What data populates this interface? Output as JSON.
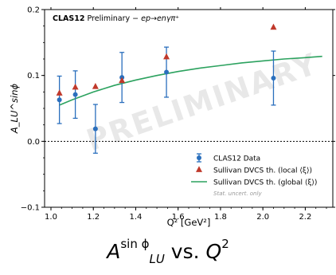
{
  "chart_data": {
    "type": "scatter",
    "title_bold": "CLAS12",
    "title_rest": " Preliminary − ",
    "title_reaction": "ep→enγπ⁺",
    "xlabel": "Q² [GeV²]",
    "ylabel": "A_LU^sinϕ",
    "xlim": [
      0.97,
      2.33
    ],
    "ylim": [
      -0.1,
      0.2
    ],
    "xticks": [
      1.0,
      1.2,
      1.4,
      1.6,
      1.8,
      2.0,
      2.2
    ],
    "xtick_labels": [
      "1.0",
      "1.2",
      "1.4",
      "1.6",
      "1.8",
      "2.0",
      "2.2"
    ],
    "yticks": [
      -0.1,
      0.0,
      0.1,
      0.2
    ],
    "ytick_labels": [
      "−0.1",
      "0.0",
      "0.1",
      "0.2"
    ],
    "zero_line": true,
    "watermark": "PRELIMINARY",
    "legend_position": "lower-right",
    "note": "Stat. uncert. only",
    "series": [
      {
        "name": "CLAS12 Data",
        "kind": "points_with_errors",
        "color": "#2a6fbd",
        "x": [
          1.04,
          1.115,
          1.21,
          1.335,
          1.545,
          2.05
        ],
        "y": [
          0.063,
          0.071,
          0.019,
          0.097,
          0.105,
          0.096
        ],
        "yerr": [
          0.036,
          0.036,
          0.037,
          0.038,
          0.038,
          0.041
        ]
      },
      {
        "name": "Sullivan DVCS th. (local ⟨ξ⟩)",
        "kind": "markers",
        "color": "#c0392b",
        "x": [
          1.04,
          1.115,
          1.21,
          1.335,
          1.545,
          2.05
        ],
        "y": [
          0.073,
          0.082,
          0.083,
          0.092,
          0.128,
          0.173
        ]
      },
      {
        "name": "Sullivan DVCS th. (global ⟨ξ⟩)",
        "kind": "line",
        "color": "#2ca25f",
        "x": [
          1.04,
          1.1,
          1.2,
          1.3,
          1.4,
          1.5,
          1.6,
          1.7,
          1.8,
          1.9,
          2.0,
          2.1,
          2.2,
          2.28
        ],
        "y": [
          0.055,
          0.063,
          0.075,
          0.085,
          0.093,
          0.1,
          0.106,
          0.111,
          0.115,
          0.119,
          0.122,
          0.125,
          0.127,
          0.129
        ]
      }
    ]
  },
  "caption": {
    "main": "A",
    "sup": "sin ϕ",
    "sub": "LU",
    "vs": " vs. ",
    "q": "Q",
    "qsup": "2"
  }
}
